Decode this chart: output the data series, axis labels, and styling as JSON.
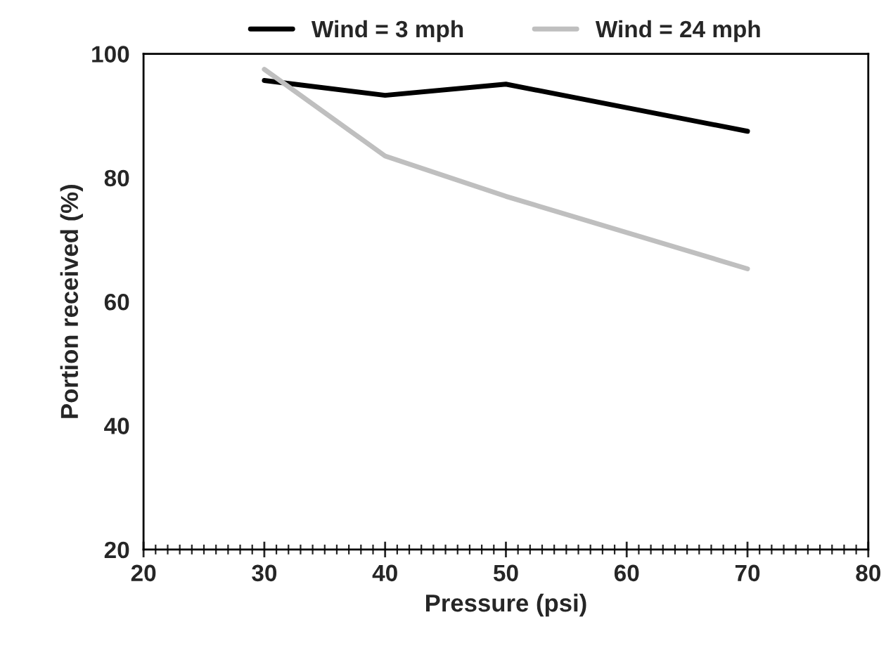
{
  "chart_data": {
    "type": "line",
    "xlabel": "Pressure (psi)",
    "ylabel": "Portion received (%)",
    "x": [
      30,
      40,
      50,
      70
    ],
    "series": [
      {
        "name": "Wind = 3 mph",
        "color": "#000000",
        "values": [
          95.7,
          93.3,
          95.1,
          87.5
        ]
      },
      {
        "name": "Wind = 24 mph",
        "color": "#bfbfbf",
        "values": [
          97.5,
          83.5,
          77,
          65.3
        ]
      }
    ],
    "xlim": [
      20,
      80
    ],
    "xticks": [
      20,
      30,
      40,
      50,
      60,
      70,
      80
    ],
    "ylim": [
      20,
      100
    ],
    "yticks": [
      20,
      40,
      60,
      80,
      100
    ],
    "legend": "top",
    "grid": false,
    "marker": "none",
    "line_style": "solid"
  }
}
